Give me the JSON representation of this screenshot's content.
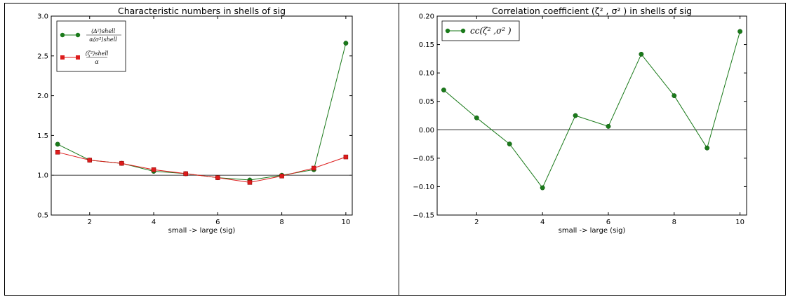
{
  "chart_data": [
    {
      "type": "line",
      "title": "Characteristic numbers in shells of sig",
      "xlabel": "small -> large  (sig)",
      "ylabel": "",
      "xlim": [
        0.8,
        10.2
      ],
      "ylim": [
        0.5,
        3.0
      ],
      "xticks": [
        "2",
        "4",
        "6",
        "8",
        "10"
      ],
      "yticks": [
        "0.5",
        "1.0",
        "1.5",
        "2.0",
        "2.5",
        "3.0"
      ],
      "reference_line": 1.0,
      "grid": false,
      "legend_position": "top-left",
      "series": [
        {
          "name": "⟨Δ²⟩shell / α⟨σ²⟩shell",
          "color": "#1a7a1a",
          "marker": "circle",
          "x": [
            1,
            2,
            3,
            4,
            5,
            6,
            7,
            8,
            9,
            10
          ],
          "y": [
            1.39,
            1.19,
            1.15,
            1.05,
            1.02,
            0.97,
            0.94,
            1.0,
            1.07,
            2.66
          ]
        },
        {
          "name": "⟨ζ²⟩shell / α",
          "color": "#dd1c1c",
          "marker": "square",
          "x": [
            1,
            2,
            3,
            4,
            5,
            6,
            7,
            8,
            9,
            10
          ],
          "y": [
            1.29,
            1.19,
            1.15,
            1.07,
            1.02,
            0.97,
            0.91,
            0.99,
            1.09,
            1.23
          ]
        }
      ]
    },
    {
      "type": "line",
      "title": "Correlation coefficient (ζ² , σ² ) in shells of sig",
      "xlabel": "small -> large  (sig)",
      "ylabel": "",
      "xlim": [
        0.8,
        10.2
      ],
      "ylim": [
        -0.15,
        0.2
      ],
      "xticks": [
        "2",
        "4",
        "6",
        "8",
        "10"
      ],
      "yticks": [
        "−0.15",
        "−0.10",
        "−0.05",
        "0.00",
        "0.05",
        "0.10",
        "0.15",
        "0.20"
      ],
      "reference_line": 0.0,
      "grid": false,
      "legend_position": "top-left",
      "series": [
        {
          "name": "cc(ζ² ,σ² )",
          "color": "#1a7a1a",
          "marker": "circle",
          "x": [
            1,
            2,
            3,
            4,
            5,
            6,
            7,
            8,
            9,
            10
          ],
          "y": [
            0.07,
            0.021,
            -0.025,
            -0.102,
            0.025,
            0.006,
            0.133,
            0.06,
            -0.032,
            0.173
          ]
        }
      ]
    }
  ]
}
